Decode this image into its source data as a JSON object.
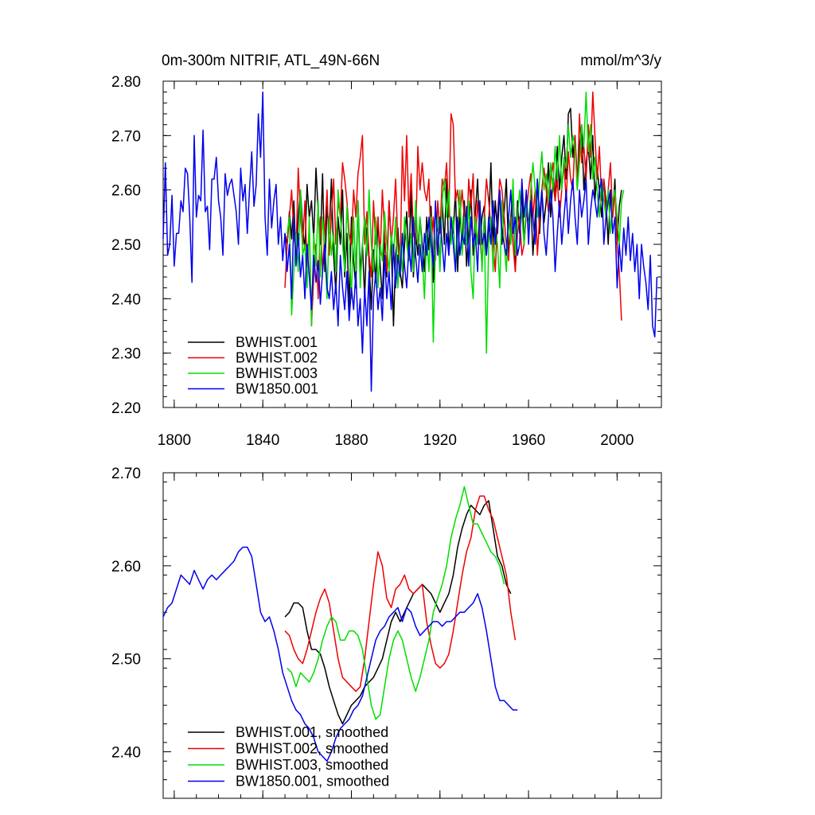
{
  "figure_title": "0m-300m NITRIF, ATL_49N-66N",
  "units": "mmol/m^3/y",
  "colors": {
    "BWHIST.001": "#000000",
    "BWHIST.002": "#ee0000",
    "BWHIST.003": "#00dd00",
    "BW1850.001": "#0000ee"
  },
  "chart_data": [
    {
      "type": "line",
      "title": "0m-300m NITRIF, ATL_49N-66N",
      "units": "mmol/m^3/y",
      "xlim": [
        1795,
        2020
      ],
      "ylim": [
        2.2,
        2.8
      ],
      "xticks": [
        1800,
        1840,
        1880,
        1920,
        1960,
        2000
      ],
      "xtick_labels": [
        "1800",
        "1840",
        "1880",
        "1920",
        "1960",
        "2000"
      ],
      "yticks": [
        2.2,
        2.3,
        2.4,
        2.5,
        2.6,
        2.7,
        2.8
      ],
      "ytick_labels": [
        "2.20",
        "2.30",
        "2.40",
        "2.50",
        "2.60",
        "2.70",
        "2.80"
      ],
      "legend_position": "bottom-left",
      "legend": [
        "BWHIST.001",
        "BWHIST.002",
        "BWHIST.003",
        "BW1850.001"
      ],
      "series": [
        {
          "name": "BWHIST.001",
          "color_key": "BWHIST.001",
          "x_start": 1850,
          "x_step": 1,
          "values": [
            2.52,
            2.5,
            2.56,
            2.51,
            2.58,
            2.47,
            2.55,
            2.6,
            2.53,
            2.49,
            2.61,
            2.55,
            2.58,
            2.51,
            2.64,
            2.56,
            2.5,
            2.63,
            2.45,
            2.57,
            2.52,
            2.62,
            2.48,
            2.41,
            2.55,
            2.5,
            2.6,
            2.44,
            2.52,
            2.38,
            2.55,
            2.47,
            2.42,
            2.58,
            2.45,
            2.5,
            2.4,
            2.53,
            2.47,
            2.38,
            2.49,
            2.43,
            2.55,
            2.46,
            2.4,
            2.52,
            2.44,
            2.58,
            2.5,
            2.35,
            2.48,
            2.53,
            2.45,
            2.42,
            2.5,
            2.56,
            2.47,
            2.6,
            2.44,
            2.52,
            2.48,
            2.55,
            2.5,
            2.45,
            2.55,
            2.49,
            2.57,
            2.43,
            2.5,
            2.54,
            2.46,
            2.58,
            2.5,
            2.62,
            2.48,
            2.55,
            2.52,
            2.6,
            2.45,
            2.56,
            2.5,
            2.58,
            2.46,
            2.52,
            2.6,
            2.48,
            2.56,
            2.62,
            2.5,
            2.55,
            2.57,
            2.48,
            2.53,
            2.65,
            2.5,
            2.58,
            2.52,
            2.6,
            2.5,
            2.56,
            2.62,
            2.48,
            2.55,
            2.6,
            2.45,
            2.58,
            2.52,
            2.6,
            2.5,
            2.56,
            2.54,
            2.59,
            2.48,
            2.55,
            2.62,
            2.52,
            2.6,
            2.54,
            2.58,
            2.65,
            2.55,
            2.62,
            2.58,
            2.68,
            2.6,
            2.66,
            2.7,
            2.62,
            2.74,
            2.75,
            2.66,
            2.7,
            2.62,
            2.68,
            2.72,
            2.6,
            2.65,
            2.68,
            2.62,
            2.7,
            2.58,
            2.64,
            2.6,
            2.55,
            2.62,
            2.58,
            2.5,
            2.6,
            2.55,
            2.62,
            2.5,
            2.57,
            2.6
          ]
        },
        {
          "name": "BWHIST.002",
          "color_key": "BWHIST.002",
          "x_start": 1850,
          "x_step": 1,
          "values": [
            2.42,
            2.5,
            2.55,
            2.6,
            2.52,
            2.48,
            2.64,
            2.55,
            2.5,
            2.58,
            2.46,
            2.53,
            2.35,
            2.44,
            2.5,
            2.4,
            2.55,
            2.45,
            2.52,
            2.6,
            2.48,
            2.55,
            2.62,
            2.5,
            2.58,
            2.55,
            2.65,
            2.62,
            2.58,
            2.52,
            2.5,
            2.6,
            2.55,
            2.63,
            2.66,
            2.7,
            2.5,
            2.56,
            2.48,
            2.44,
            2.58,
            2.5,
            2.55,
            2.48,
            2.6,
            2.52,
            2.45,
            2.58,
            2.5,
            2.55,
            2.62,
            2.5,
            2.45,
            2.68,
            2.58,
            2.7,
            2.55,
            2.63,
            2.52,
            2.5,
            2.68,
            2.6,
            2.65,
            2.6,
            2.58,
            2.62,
            2.5,
            2.55,
            2.47,
            2.58,
            2.52,
            2.62,
            2.6,
            2.65,
            2.55,
            2.74,
            2.72,
            2.58,
            2.6,
            2.55,
            2.6,
            2.55,
            2.5,
            2.62,
            2.57,
            2.63,
            2.5,
            2.58,
            2.52,
            2.46,
            2.55,
            2.62,
            2.58,
            2.53,
            2.5,
            2.45,
            2.55,
            2.62,
            2.6,
            2.55,
            2.5,
            2.47,
            2.55,
            2.5,
            2.45,
            2.52,
            2.55,
            2.48,
            2.5,
            2.56,
            2.6,
            2.63,
            2.55,
            2.6,
            2.48,
            2.55,
            2.6,
            2.64,
            2.6,
            2.56,
            2.62,
            2.65,
            2.58,
            2.62,
            2.55,
            2.6,
            2.65,
            2.58,
            2.67,
            2.62,
            2.6,
            2.7,
            2.6,
            2.74,
            2.65,
            2.68,
            2.62,
            2.72,
            2.66,
            2.78,
            2.7,
            2.62,
            2.68,
            2.58,
            2.62,
            2.55,
            2.6,
            2.65,
            2.55,
            2.6,
            2.5,
            2.45,
            2.36
          ]
        },
        {
          "name": "BWHIST.003",
          "color_key": "BWHIST.003",
          "x_start": 1851,
          "x_step": 1,
          "values": [
            2.52,
            2.55,
            2.37,
            2.45,
            2.52,
            2.45,
            2.6,
            2.48,
            2.5,
            2.42,
            2.55,
            2.35,
            2.52,
            2.46,
            2.58,
            2.44,
            2.55,
            2.5,
            2.4,
            2.55,
            2.48,
            2.52,
            2.45,
            2.6,
            2.55,
            2.5,
            2.45,
            2.57,
            2.5,
            2.4,
            2.55,
            2.45,
            2.58,
            2.42,
            2.5,
            2.55,
            2.48,
            2.6,
            2.5,
            2.45,
            2.55,
            2.42,
            2.5,
            2.47,
            2.56,
            2.5,
            2.45,
            2.52,
            2.48,
            2.55,
            2.42,
            2.5,
            2.45,
            2.55,
            2.5,
            2.47,
            2.52,
            2.45,
            2.58,
            2.5,
            2.55,
            2.48,
            2.4,
            2.52,
            2.45,
            2.55,
            2.32,
            2.5,
            2.55,
            2.45,
            2.58,
            2.62,
            2.55,
            2.6,
            2.5,
            2.55,
            2.45,
            2.52,
            2.6,
            2.48,
            2.55,
            2.5,
            2.58,
            2.45,
            2.4,
            2.55,
            2.5,
            2.57,
            2.45,
            2.55,
            2.3,
            2.5,
            2.55,
            2.45,
            2.53,
            2.5,
            2.42,
            2.58,
            2.5,
            2.45,
            2.55,
            2.5,
            2.62,
            2.48,
            2.55,
            2.6,
            2.55,
            2.5,
            2.58,
            2.52,
            2.6,
            2.65,
            2.6,
            2.55,
            2.62,
            2.67,
            2.6,
            2.63,
            2.58,
            2.65,
            2.6,
            2.68,
            2.62,
            2.7,
            2.6,
            2.66,
            2.64,
            2.72,
            2.66,
            2.7,
            2.68,
            2.6,
            2.65,
            2.72,
            2.68,
            2.78,
            2.67,
            2.72,
            2.62,
            2.66,
            2.6,
            2.55,
            2.62,
            2.58,
            2.55,
            2.6,
            2.52,
            2.58,
            2.6,
            2.55,
            2.5,
            2.58,
            2.6
          ]
        },
        {
          "name": "BW1850.001",
          "color_key": "BW1850.001",
          "x_start": 1795,
          "x_step": 1,
          "values": [
            2.51,
            2.65,
            2.48,
            2.5,
            2.59,
            2.46,
            2.52,
            2.52,
            2.58,
            2.56,
            2.64,
            2.63,
            2.55,
            2.43,
            2.7,
            2.55,
            2.59,
            2.58,
            2.71,
            2.56,
            2.57,
            2.49,
            2.62,
            2.62,
            2.66,
            2.58,
            2.55,
            2.48,
            2.63,
            2.59,
            2.61,
            2.62,
            2.59,
            2.56,
            2.5,
            2.64,
            2.58,
            2.61,
            2.52,
            2.6,
            2.67,
            2.57,
            2.61,
            2.74,
            2.66,
            2.78,
            2.55,
            2.48,
            2.62,
            2.53,
            2.58,
            2.61,
            2.5,
            2.55,
            2.47,
            2.52,
            2.45,
            2.5,
            2.4,
            2.55,
            2.46,
            2.52,
            2.44,
            2.48,
            2.4,
            2.5,
            2.44,
            2.38,
            2.48,
            2.43,
            2.47,
            2.39,
            2.45,
            2.5,
            2.42,
            2.4,
            2.45,
            2.38,
            2.43,
            2.35,
            2.48,
            2.42,
            2.38,
            2.45,
            2.36,
            2.42,
            2.38,
            2.45,
            2.35,
            2.4,
            2.3,
            2.42,
            2.35,
            2.45,
            2.23,
            2.4,
            2.45,
            2.38,
            2.42,
            2.36,
            2.48,
            2.4,
            2.45,
            2.38,
            2.5,
            2.42,
            2.48,
            2.44,
            2.52,
            2.46,
            2.42,
            2.5,
            2.45,
            2.55,
            2.48,
            2.43,
            2.5,
            2.45,
            2.52,
            2.48,
            2.55,
            2.5,
            2.46,
            2.58,
            2.48,
            2.55,
            2.5,
            2.45,
            2.52,
            2.48,
            2.55,
            2.5,
            2.45,
            2.55,
            2.48,
            2.52,
            2.5,
            2.57,
            2.46,
            2.55,
            2.5,
            2.52,
            2.45,
            2.58,
            2.5,
            2.52,
            2.48,
            2.55,
            2.5,
            2.58,
            2.5,
            2.55,
            2.6,
            2.52,
            2.5,
            2.48,
            2.55,
            2.6,
            2.52,
            2.55,
            2.48,
            2.5,
            2.62,
            2.55,
            2.6,
            2.5,
            2.58,
            2.55,
            2.5,
            2.62,
            2.55,
            2.6,
            2.52,
            2.48,
            2.55,
            2.6,
            2.55,
            2.45,
            2.52,
            2.58,
            2.5,
            2.55,
            2.6,
            2.52,
            2.58,
            2.62,
            2.55,
            2.5,
            2.6,
            2.55,
            2.58,
            2.62,
            2.5,
            2.56,
            2.6,
            2.58,
            2.55,
            2.6,
            2.62,
            2.5,
            2.55,
            2.58,
            2.6,
            2.52,
            2.55,
            2.42,
            2.5,
            2.45,
            2.53,
            2.48,
            2.55,
            2.47,
            2.52,
            2.45,
            2.5,
            2.4,
            2.5,
            2.46,
            2.43,
            2.38,
            2.48,
            2.35,
            2.33,
            2.44
          ]
        }
      ]
    },
    {
      "type": "line",
      "title": "",
      "xlim": [
        1795,
        2020
      ],
      "ylim": [
        2.35,
        2.7
      ],
      "xticks": [
        1800,
        1840,
        1880,
        1920,
        1960,
        2000
      ],
      "xtick_labels": [],
      "yticks": [
        2.4,
        2.5,
        2.6,
        2.7
      ],
      "ytick_labels": [
        "2.40",
        "2.50",
        "2.60",
        "2.70"
      ],
      "legend_position": "bottom-left",
      "legend": [
        "BWHIST.001, smoothed",
        "BWHIST.002, smoothed",
        "BWHIST.003, smoothed",
        "BW1850.001, smoothed"
      ],
      "series": [
        {
          "name": "BWHIST.001, smoothed",
          "color_key": "BWHIST.001",
          "x_start": 1850,
          "x_step": 2,
          "values": [
            2.545,
            2.55,
            2.56,
            2.56,
            2.555,
            2.53,
            2.51,
            2.51,
            2.505,
            2.49,
            2.47,
            2.455,
            2.44,
            2.43,
            2.44,
            2.45,
            2.455,
            2.46,
            2.47,
            2.475,
            2.48,
            2.49,
            2.5,
            2.52,
            2.54,
            2.55,
            2.54,
            2.55,
            2.56,
            2.57,
            2.575,
            2.58,
            2.575,
            2.57,
            2.56,
            2.55,
            2.56,
            2.57,
            2.59,
            2.62,
            2.64,
            2.655,
            2.665,
            2.66,
            2.655,
            2.665,
            2.67,
            2.64,
            2.61,
            2.6,
            2.58,
            2.57
          ]
        },
        {
          "name": "BWHIST.002, smoothed",
          "color_key": "BWHIST.002",
          "x_start": 1850,
          "x_step": 2,
          "values": [
            2.53,
            2.525,
            2.51,
            2.5,
            2.495,
            2.51,
            2.53,
            2.55,
            2.565,
            2.575,
            2.56,
            2.53,
            2.5,
            2.48,
            2.475,
            2.47,
            2.465,
            2.47,
            2.5,
            2.54,
            2.58,
            2.615,
            2.6,
            2.565,
            2.555,
            2.575,
            2.58,
            2.59,
            2.575,
            2.57,
            2.575,
            2.58,
            2.54,
            2.515,
            2.495,
            2.49,
            2.495,
            2.505,
            2.53,
            2.56,
            2.59,
            2.615,
            2.63,
            2.66,
            2.675,
            2.675,
            2.66,
            2.65,
            2.63,
            2.61,
            2.59,
            2.55,
            2.52
          ]
        },
        {
          "name": "BWHIST.003, smoothed",
          "color_key": "BWHIST.003",
          "x_start": 1851,
          "x_step": 2,
          "values": [
            2.49,
            2.485,
            2.47,
            2.485,
            2.48,
            2.475,
            2.485,
            2.5,
            2.52,
            2.535,
            2.545,
            2.54,
            2.52,
            2.52,
            2.53,
            2.53,
            2.525,
            2.51,
            2.48,
            2.45,
            2.435,
            2.44,
            2.47,
            2.5,
            2.52,
            2.53,
            2.52,
            2.5,
            2.48,
            2.465,
            2.48,
            2.5,
            2.52,
            2.55,
            2.565,
            2.58,
            2.6,
            2.63,
            2.65,
            2.665,
            2.685,
            2.665,
            2.645,
            2.645,
            2.635,
            2.625,
            2.615,
            2.61,
            2.6,
            2.58
          ]
        },
        {
          "name": "BW1850.001, smoothed",
          "color_key": "BW1850.001",
          "x_start": 1795,
          "x_step": 2,
          "values": [
            2.545,
            2.555,
            2.56,
            2.575,
            2.59,
            2.585,
            2.58,
            2.595,
            2.585,
            2.575,
            2.585,
            2.59,
            2.585,
            2.59,
            2.595,
            2.6,
            2.605,
            2.615,
            2.62,
            2.62,
            2.61,
            2.58,
            2.55,
            2.54,
            2.545,
            2.53,
            2.51,
            2.485,
            2.47,
            2.455,
            2.445,
            2.44,
            2.43,
            2.425,
            2.415,
            2.4,
            2.395,
            2.39,
            2.4,
            2.415,
            2.425,
            2.43,
            2.435,
            2.445,
            2.45,
            2.46,
            2.48,
            2.5,
            2.52,
            2.53,
            2.535,
            2.545,
            2.55,
            2.555,
            2.54,
            2.555,
            2.55,
            2.535,
            2.525,
            2.53,
            2.535,
            2.54,
            2.54,
            2.535,
            2.54,
            2.54,
            2.545,
            2.55,
            2.55,
            2.555,
            2.56,
            2.57,
            2.555,
            2.53,
            2.5,
            2.47,
            2.455,
            2.455,
            2.45,
            2.445,
            2.445
          ]
        }
      ]
    }
  ]
}
